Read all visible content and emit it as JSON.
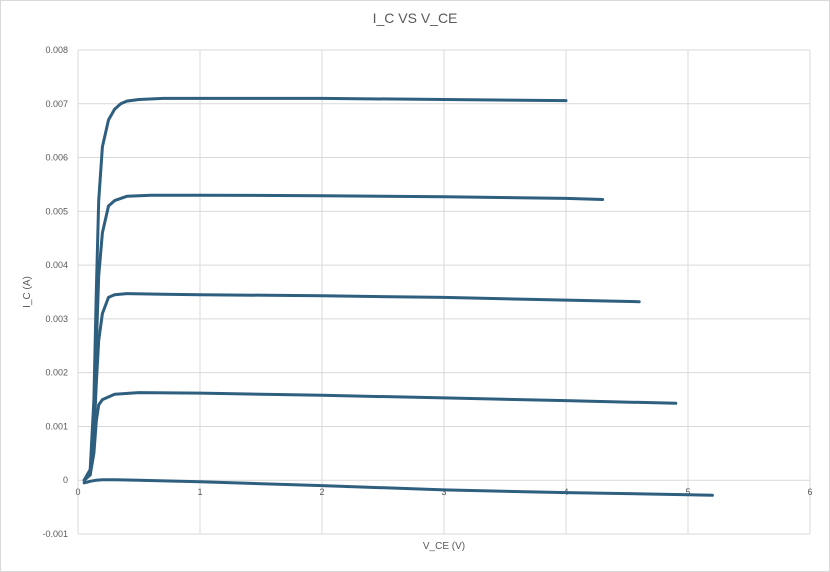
{
  "chart_data": {
    "type": "line",
    "title": "I_C VS V_CE",
    "xlabel": "V_CE (V)",
    "ylabel": "I_C (A)",
    "xlim": [
      0,
      6
    ],
    "ylim": [
      -0.001,
      0.008
    ],
    "x_ticks": [
      "0",
      "1",
      "2",
      "3",
      "4",
      "5",
      "6"
    ],
    "y_ticks": [
      "-0.001",
      "0",
      "0.001",
      "0.002",
      "0.003",
      "0.004",
      "0.005",
      "0.006",
      "0.007",
      "0.008"
    ],
    "grid": true,
    "legend": "none",
    "line_color": "#2e5f7f",
    "series": [
      {
        "x": [
          0.05,
          0.1,
          0.15,
          0.2,
          0.3,
          0.5,
          1.0,
          2.0,
          3.0,
          4.0,
          5.0,
          5.2
        ],
        "y": [
          -5e-05,
          -2e-05,
          0.0,
          1e-05,
          1e-05,
          0.0,
          -3e-05,
          -0.0001,
          -0.00018,
          -0.00023,
          -0.00027,
          -0.00028
        ]
      },
      {
        "x": [
          0.05,
          0.1,
          0.13,
          0.15,
          0.17,
          0.2,
          0.3,
          0.5,
          1.0,
          2.0,
          3.0,
          4.0,
          4.9
        ],
        "y": [
          0.0,
          0.0001,
          0.0005,
          0.0011,
          0.0014,
          0.0015,
          0.0016,
          0.00163,
          0.00162,
          0.00158,
          0.00153,
          0.00148,
          0.00143
        ]
      },
      {
        "x": [
          0.05,
          0.1,
          0.13,
          0.15,
          0.17,
          0.2,
          0.25,
          0.3,
          0.4,
          0.7,
          1.0,
          2.0,
          3.0,
          4.0,
          4.6
        ],
        "y": [
          0.0,
          0.0001,
          0.0008,
          0.0018,
          0.0026,
          0.0031,
          0.0034,
          0.00345,
          0.00347,
          0.00346,
          0.00345,
          0.00343,
          0.0034,
          0.00335,
          0.00332
        ]
      },
      {
        "x": [
          0.05,
          0.1,
          0.13,
          0.15,
          0.17,
          0.2,
          0.25,
          0.3,
          0.4,
          0.6,
          1.0,
          2.0,
          3.0,
          4.0,
          4.3
        ],
        "y": [
          0.0,
          0.0001,
          0.001,
          0.0025,
          0.0038,
          0.0046,
          0.0051,
          0.0052,
          0.00528,
          0.0053,
          0.0053,
          0.00529,
          0.00527,
          0.00524,
          0.00522
        ]
      },
      {
        "x": [
          0.05,
          0.1,
          0.13,
          0.15,
          0.17,
          0.2,
          0.25,
          0.3,
          0.35,
          0.4,
          0.5,
          0.7,
          1.0,
          2.0,
          3.0,
          4.0
        ],
        "y": [
          0.0,
          0.0002,
          0.0015,
          0.0035,
          0.0052,
          0.0062,
          0.0067,
          0.0069,
          0.007,
          0.00705,
          0.00708,
          0.0071,
          0.0071,
          0.0071,
          0.00708,
          0.00706
        ]
      }
    ]
  }
}
